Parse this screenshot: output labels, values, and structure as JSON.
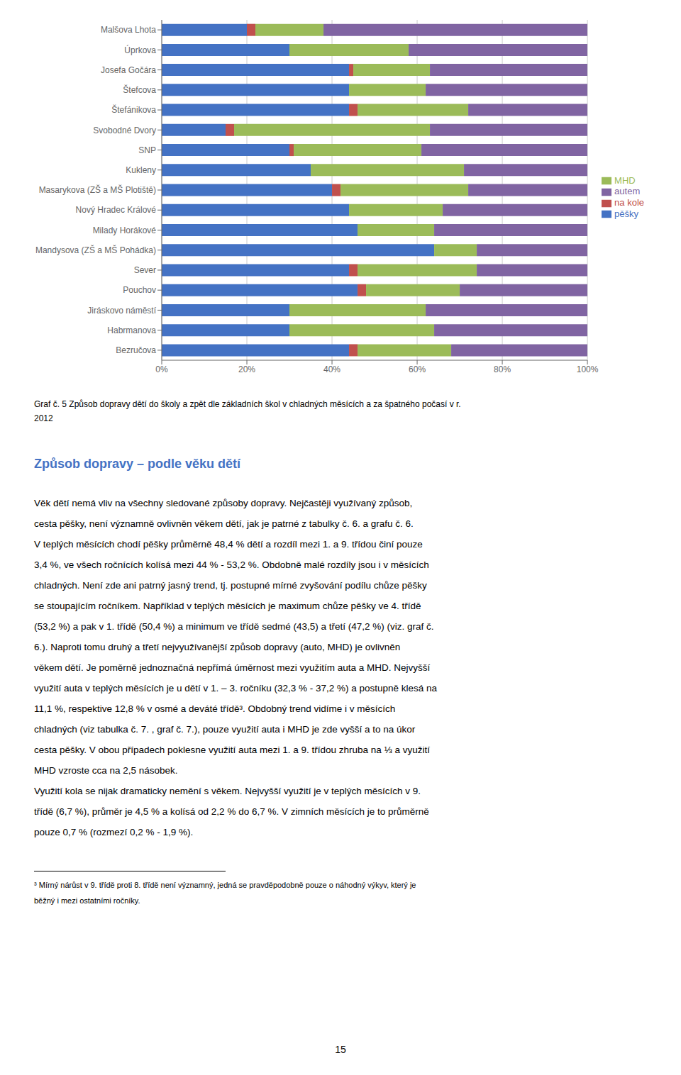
{
  "chart_data": {
    "type": "bar",
    "orientation": "horizontal",
    "stacked": true,
    "grid": true,
    "title": "Graf č. 5 Způsob dopravy dětí do školy a zpět dle základních škol v chladných měsících a za špatného počasí v r.\n2012",
    "categories": [
      "Bezručova",
      "Habrmanova",
      "Jiráskovo náměstí",
      "Pouchov",
      "Sever",
      "Mandysova (ZŠ a MŠ Pohádka)",
      "Milady Horákové",
      "Nový Hradec Králové",
      "Masarykova (ZŠ a MŠ Plotiště)",
      "Kukleny",
      "SNP",
      "Svobodné Dvory",
      "Štefánikova",
      "Štefcova",
      "Josefa Gočára",
      "Úprkova",
      "Malšova Lhota"
    ],
    "series": [
      {
        "name": "pěšky",
        "color": "#4472C4",
        "values": [
          44,
          30,
          30,
          46,
          44,
          64,
          46,
          44,
          40,
          35,
          30,
          15,
          44,
          44,
          44,
          30,
          20
        ]
      },
      {
        "name": "na kole",
        "color": "#C0504D",
        "values": [
          2,
          0,
          0,
          2,
          2,
          0,
          0,
          0,
          2,
          0,
          1,
          2,
          2,
          0,
          1,
          0,
          2
        ]
      },
      {
        "name": "MHD",
        "color": "#9BBB59",
        "values": [
          22,
          34,
          32,
          22,
          28,
          10,
          18,
          22,
          30,
          36,
          30,
          46,
          26,
          18,
          18,
          28,
          16
        ]
      },
      {
        "name": "autem",
        "color": "#8064A2",
        "values": [
          32,
          36,
          38,
          30,
          26,
          26,
          36,
          34,
          28,
          29,
          39,
          37,
          28,
          38,
          37,
          42,
          62
        ]
      }
    ],
    "xlim": [
      0,
      100
    ],
    "xticks": [
      {
        "value": 0,
        "label": "0%"
      },
      {
        "value": 20,
        "label": "20%"
      },
      {
        "value": 40,
        "label": "40%"
      },
      {
        "value": 60,
        "label": "60%"
      },
      {
        "value": 80,
        "label": "80%"
      },
      {
        "value": 100,
        "label": "100%"
      }
    ],
    "annotations": [
      {
        "text": "Způsob dopravy – podle věku dětí",
        "color": "#4472C4"
      },
      {
        "text": "Věk dětí nemá vliv na všechny sledované způsoby dopravy. Nejčastěji využívaný způsob,"
      },
      {
        "text": "cesta pěšky, není významně ovlivněn věkem dětí, jak je patrné z tabulky č. 6. a grafu č. 6."
      },
      {
        "text": "V teplých měsících chodí pěšky průměrně 48,4 % dětí a rozdíl mezi 1. a 9. třídou činí pouze"
      },
      {
        "text": "3,4 %, ve všech ročnících kolísá mezi 44 % - 53,2 %. Obdobně malé rozdíly jsou i v měsících"
      },
      {
        "text": "chladných. Není zde ani patrný jasný trend, tj. postupné mírné zvyšování podílu chůze pěšky"
      },
      {
        "text": "se stoupajícím ročníkem. Například v teplých měsících je maximum chůze pěšky ve 4. třídě"
      },
      {
        "text": "(53,2 %) a pak v 1. třídě (50,4 %) a minimum ve třídě sedmé (43,5) a třetí (47,2 %) (viz. graf č."
      },
      {
        "text": "6.). Naproti tomu druhý a třetí nejvyužívanější způsob dopravy (auto, MHD) je ovlivněn"
      },
      {
        "text": "věkem dětí. Je poměrně jednoznačná nepřímá úměrnost mezi využitím auta a MHD. Nejvyšší"
      },
      {
        "text": "využití auta v teplých měsících je u dětí v 1. – 3. ročníku (32,3 % - 37,2 %) a postupně klesá na"
      },
      {
        "text": "11,1 %, respektive 12,8 % v osmé a deváté třídě³. Obdobný trend vidíme i v měsících"
      },
      {
        "text": "chladných (viz tabulka č. 7. , graf č. 7.), pouze využití auta i MHD je zde vyšší a to na úkor"
      },
      {
        "text": "cesta pěšky. V obou případech poklesne využití auta mezi 1. a 9. třídou zhruba na ⅓ a využití"
      },
      {
        "text": "MHD vzroste cca na 2,5 násobek."
      },
      {
        "text": "Využití kola se nijak dramaticky nemění s věkem. Nejvyšší využití je v teplých měsících v 9."
      },
      {
        "text": "třídě (6,7 %), průměr je 4,5 % a kolísá od 2,2 % do 6,7 %. V zimních měsících je to průměrně"
      },
      {
        "text": "pouze 0,7 % (rozmezí 0,2 % - 1,9 %)."
      },
      {
        "text": "³ Mírný nárůst v 9. třídě proti 8. třídě není významný, jedná se pravděpodobně pouze o náhodný výkyv, který je"
      },
      {
        "text": "běžný i mezi ostatními ročníky."
      },
      {
        "text": "15"
      }
    ]
  }
}
